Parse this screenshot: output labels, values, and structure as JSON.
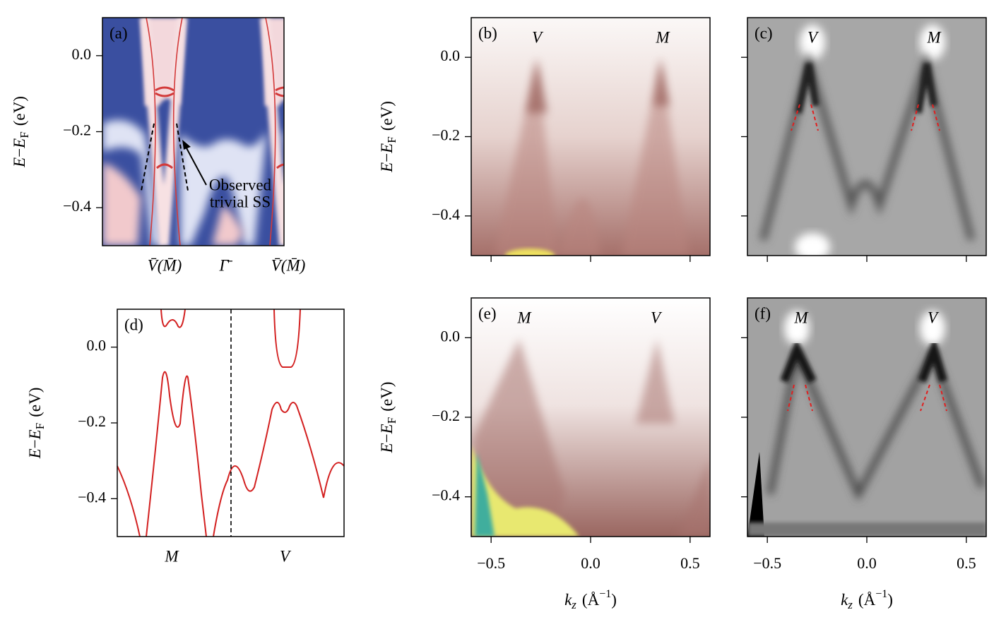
{
  "panels": [
    {
      "label": "(a)",
      "ylabel": [
        "E",
        "−",
        "E",
        "F",
        "(eV)"
      ],
      "ylim": [
        -0.5,
        0.1
      ],
      "yticks": [
        {
          "value": 0,
          "label": "0.0"
        },
        {
          "value": -0.2,
          "label": "−0.2"
        },
        {
          "value": -0.4,
          "label": "−0.4"
        }
      ],
      "categories": [
        "V̄(M̄)",
        "Γ̄",
        "V̄(M̄)"
      ],
      "annotations": [
        "Observed",
        "trivial SS"
      ]
    },
    {
      "label": "(b)",
      "ylabel": [
        "E",
        "−",
        "E",
        "F",
        "(eV)"
      ],
      "ylim": [
        -0.5,
        0.1
      ],
      "yticks": [
        {
          "value": 0,
          "label": "0.0"
        },
        {
          "value": -0.2,
          "label": "−0.2"
        },
        {
          "value": -0.4,
          "label": "−0.4"
        }
      ],
      "xlim": [
        -0.6,
        0.6
      ],
      "xticks": [
        -0.5,
        0,
        0.5
      ],
      "points": [
        "V",
        "M"
      ]
    },
    {
      "label": "(c)",
      "ylim": [
        -0.5,
        0.1
      ],
      "yticks": [
        0,
        -0.2,
        -0.4
      ],
      "xlim": [
        -0.6,
        0.6
      ],
      "xticks": [
        -0.5,
        0,
        0.5
      ],
      "points": [
        "V",
        "M"
      ]
    },
    {
      "label": "(d)",
      "ylabel": [
        "E",
        "−",
        "E",
        "F",
        "(eV)"
      ],
      "ylim": [
        -0.5,
        0.1
      ],
      "yticks": [
        {
          "value": 0,
          "label": "0.0"
        },
        {
          "value": -0.2,
          "label": "−0.2"
        },
        {
          "value": -0.4,
          "label": "−0.4"
        }
      ],
      "categories": [
        "M",
        "V"
      ]
    },
    {
      "label": "(e)",
      "ylabel": [
        "E",
        "−",
        "E",
        "F",
        "(eV)"
      ],
      "ylim": [
        -0.5,
        0.1
      ],
      "yticks": [
        {
          "value": 0,
          "label": "0.0"
        },
        {
          "value": -0.2,
          "label": "−0.2"
        },
        {
          "value": -0.4,
          "label": "−0.4"
        }
      ],
      "xlim": [
        -0.6,
        0.6
      ],
      "xticks": [
        {
          "value": -0.5,
          "label": "−0.5"
        },
        {
          "value": 0,
          "label": "0.0"
        },
        {
          "value": 0.5,
          "label": "0.5"
        }
      ],
      "xlabel": [
        "k",
        "z",
        "(Å",
        "−1",
        ")"
      ],
      "points": [
        "M",
        "V"
      ]
    },
    {
      "label": "(f)",
      "ylim": [
        -0.5,
        0.1
      ],
      "yticks": [
        0,
        -0.2,
        -0.4
      ],
      "xlim": [
        -0.6,
        0.6
      ],
      "xticks": [
        {
          "value": -0.5,
          "label": "−0.5"
        },
        {
          "value": 0,
          "label": "0.0"
        },
        {
          "value": 0.5,
          "label": "0.5"
        }
      ],
      "xlabel": [
        "k",
        "z",
        "(Å",
        "−1",
        ")"
      ],
      "points": [
        "M",
        "V"
      ]
    }
  ]
}
